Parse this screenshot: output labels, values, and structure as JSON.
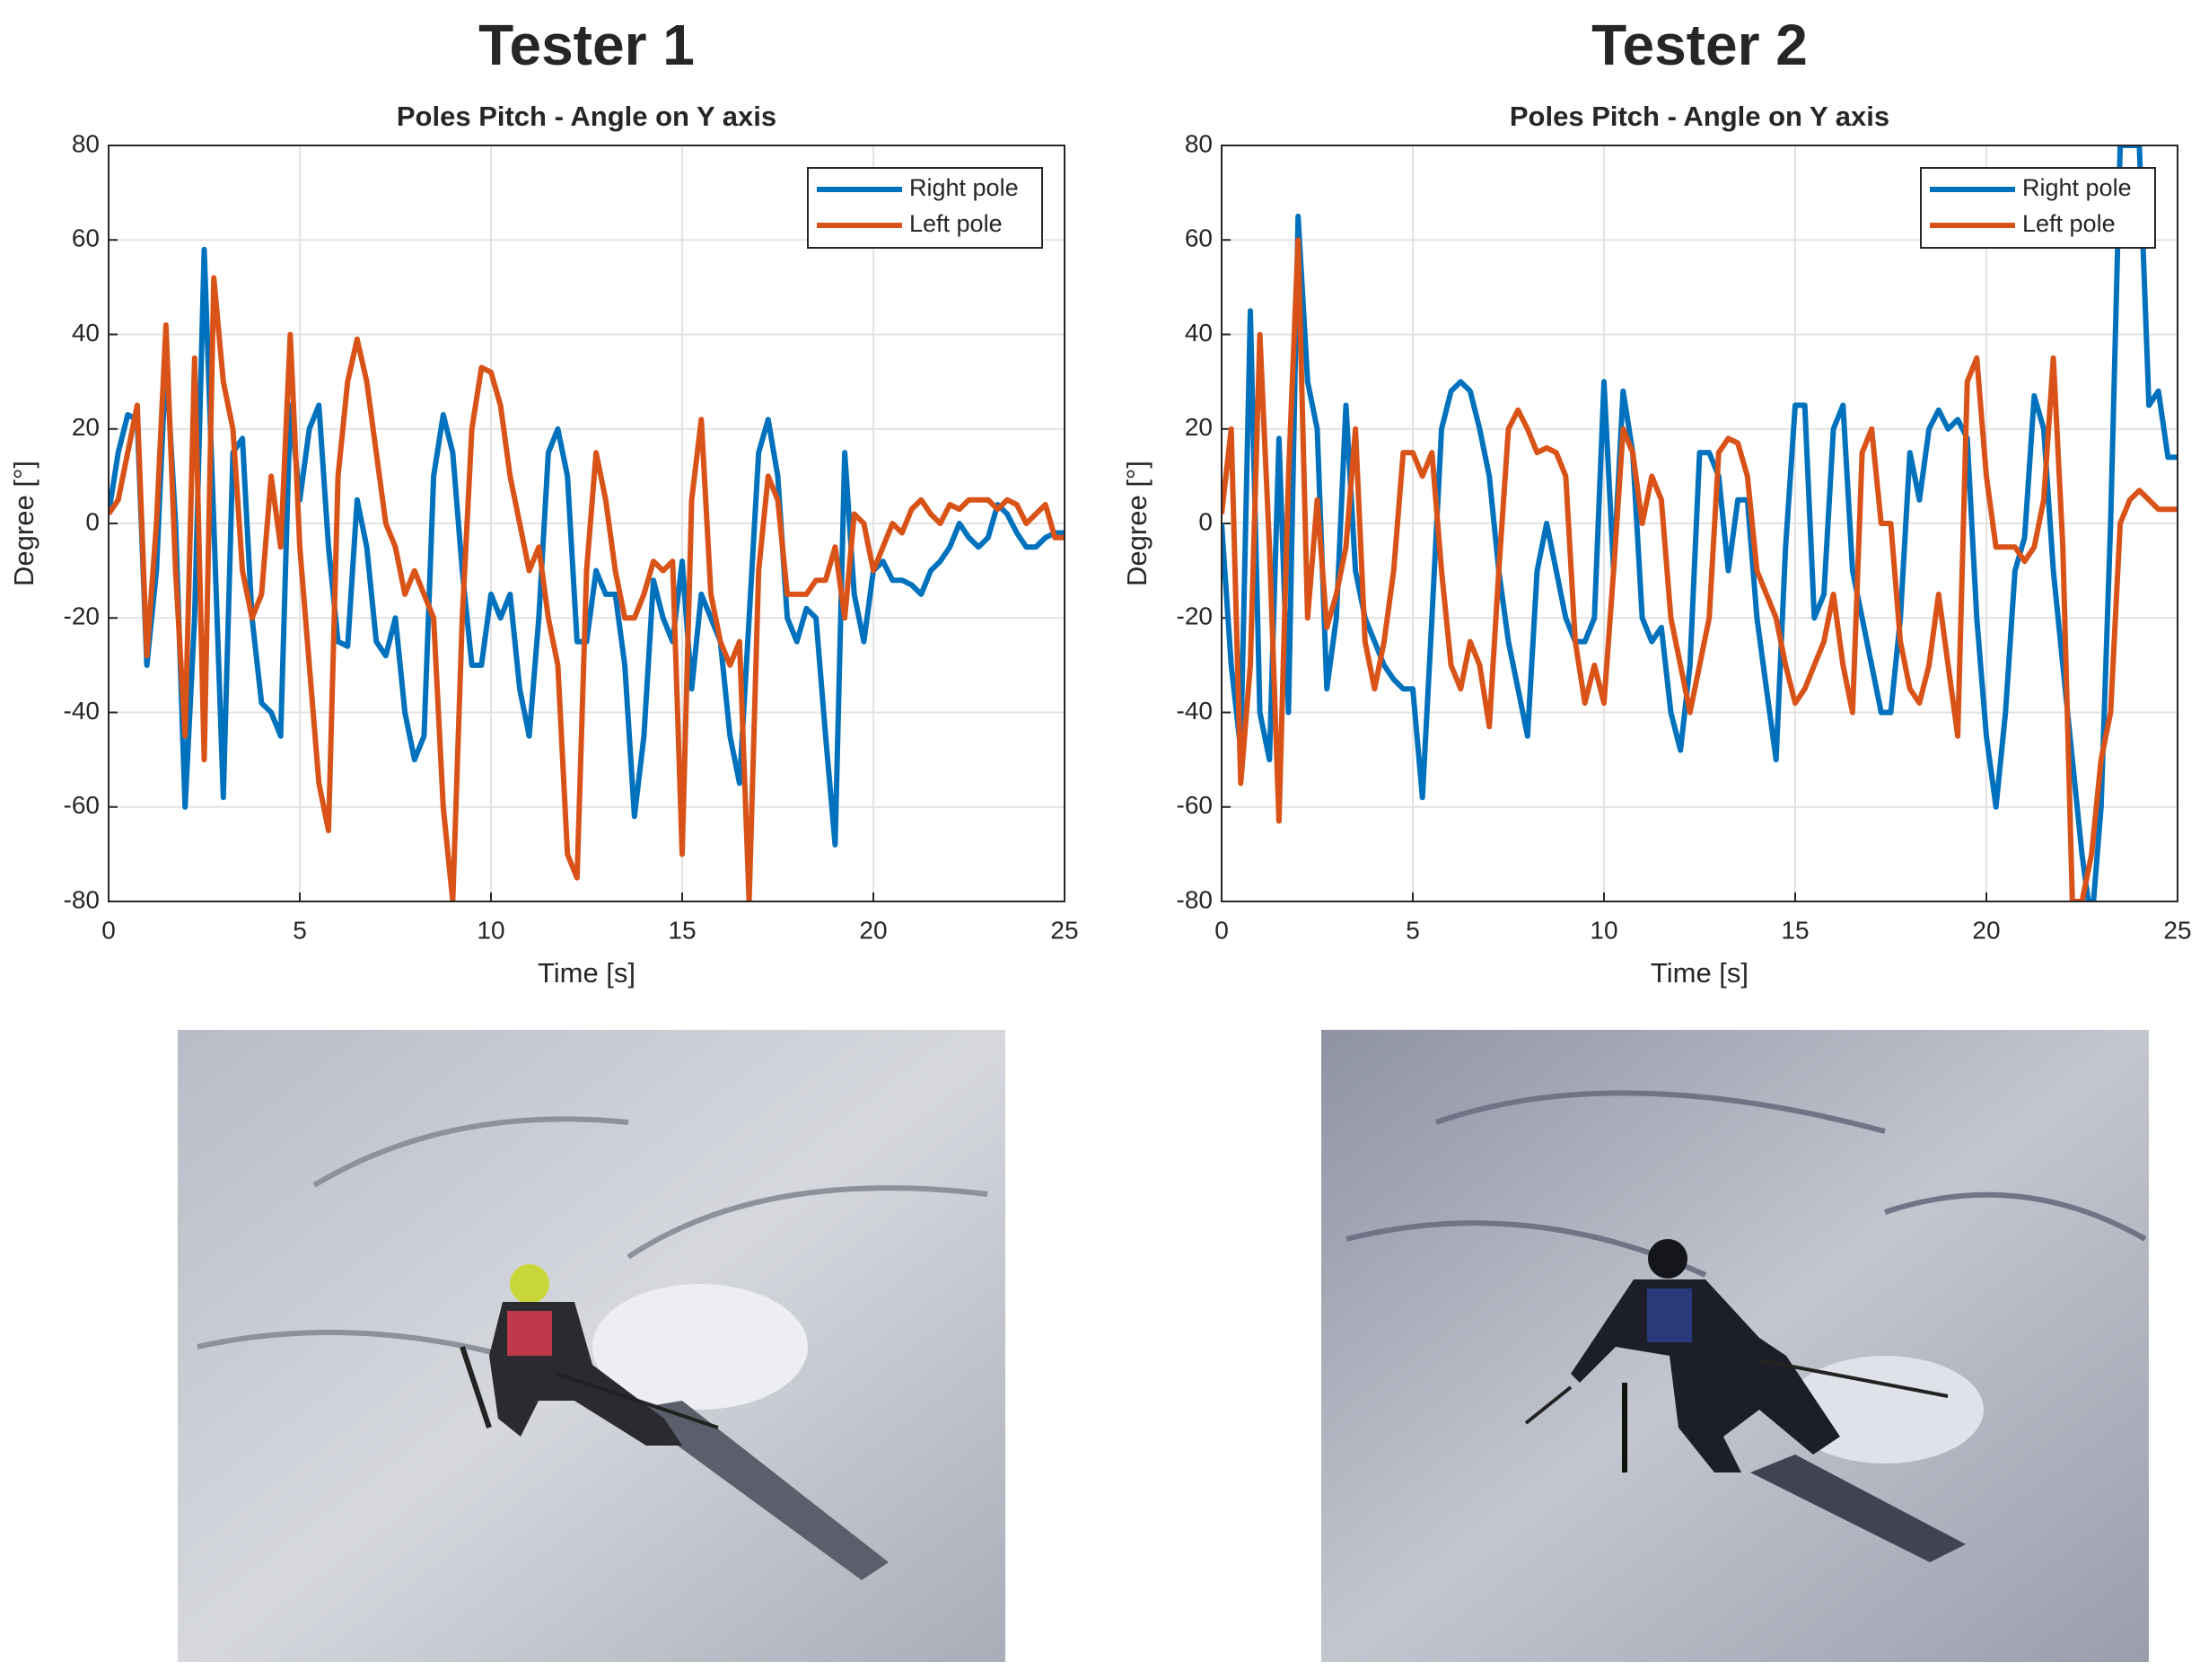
{
  "chart_data": [
    {
      "type": "line",
      "title": "Tester 1",
      "subtitle": "Poles Pitch - Angle on Y axis",
      "xlabel": "Time [s]",
      "ylabel": "Degree [°]",
      "x": [
        0,
        0.25,
        0.5,
        0.75,
        1,
        1.25,
        1.5,
        1.75,
        2,
        2.25,
        2.5,
        2.75,
        3,
        3.25,
        3.5,
        3.75,
        4,
        4.25,
        4.5,
        4.75,
        5,
        5.25,
        5.5,
        5.75,
        6,
        6.25,
        6.5,
        6.75,
        7,
        7.25,
        7.5,
        7.75,
        8,
        8.25,
        8.5,
        8.75,
        9,
        9.25,
        9.5,
        9.75,
        10,
        10.25,
        10.5,
        10.75,
        11,
        11.25,
        11.5,
        11.75,
        12,
        12.25,
        12.5,
        12.75,
        13,
        13.25,
        13.5,
        13.75,
        14,
        14.25,
        14.5,
        14.75,
        15,
        15.25,
        15.5,
        15.75,
        16,
        16.25,
        16.5,
        16.75,
        17,
        17.25,
        17.5,
        17.75,
        18,
        18.25,
        18.5,
        18.75,
        19,
        19.25,
        19.5,
        19.75,
        20,
        20.25,
        20.5,
        20.75,
        21,
        21.25,
        21.5,
        21.75,
        22,
        22.25,
        22.5,
        22.75,
        23,
        23.25,
        23.5,
        23.75,
        24,
        24.25,
        24.5,
        24.75,
        25
      ],
      "series": [
        {
          "name": "Right pole",
          "color": "#0072bd",
          "values": [
            2,
            15,
            23,
            22,
            -30,
            -10,
            35,
            0,
            -60,
            -20,
            58,
            0,
            -58,
            15,
            18,
            -20,
            -38,
            -40,
            -45,
            25,
            5,
            20,
            25,
            -5,
            -25,
            -26,
            5,
            -5,
            -25,
            -28,
            -20,
            -40,
            -50,
            -45,
            10,
            23,
            15,
            -10,
            -30,
            -30,
            -15,
            -20,
            -15,
            -35,
            -45,
            -20,
            15,
            20,
            10,
            -25,
            -25,
            -10,
            -15,
            -15,
            -30,
            -62,
            -45,
            -12,
            -20,
            -25,
            -8,
            -35,
            -15,
            -20,
            -25,
            -45,
            -55,
            -20,
            15,
            22,
            10,
            -20,
            -25,
            -18,
            -20,
            -45,
            -68,
            15,
            -15,
            -25,
            -10,
            -8,
            -12,
            -12,
            -13,
            -15,
            -10,
            -8,
            -5,
            0,
            -3,
            -5,
            -3,
            4,
            2,
            -2,
            -5,
            -5,
            -3,
            -2,
            -2
          ]
        },
        {
          "name": "Left pole",
          "color": "#d95319",
          "values": [
            2,
            5,
            15,
            25,
            -28,
            0,
            42,
            -10,
            -45,
            35,
            -50,
            52,
            30,
            20,
            -10,
            -20,
            -15,
            10,
            -5,
            40,
            -5,
            -30,
            -55,
            -65,
            10,
            30,
            39,
            30,
            15,
            0,
            -5,
            -15,
            -10,
            -15,
            -20,
            -60,
            -80,
            -20,
            20,
            33,
            32,
            25,
            10,
            0,
            -10,
            -5,
            -20,
            -30,
            -70,
            -75,
            -10,
            15,
            5,
            -10,
            -20,
            -20,
            -15,
            -8,
            -10,
            -8,
            -70,
            5,
            22,
            -15,
            -25,
            -30,
            -25,
            -80,
            -10,
            10,
            5,
            -15,
            -15,
            -15,
            -12,
            -12,
            -5,
            -20,
            2,
            0,
            -10,
            -5,
            0,
            -2,
            3,
            5,
            2,
            0,
            4,
            3,
            5,
            5,
            5,
            3,
            5,
            4,
            0,
            2,
            4,
            -3,
            -3
          ]
        }
      ],
      "xlim": [
        0,
        25
      ],
      "xticks": [
        0,
        5,
        10,
        15,
        20,
        25
      ],
      "ylim": [
        -80,
        80
      ],
      "yticks": [
        -80,
        -60,
        -40,
        -20,
        0,
        20,
        40,
        60,
        80
      ],
      "grid": true,
      "legend": "upper right"
    },
    {
      "type": "line",
      "title": "Tester 2",
      "subtitle": "Poles Pitch - Angle on Y axis",
      "xlabel": "Time [s]",
      "ylabel": "Degree [°]",
      "x": [
        0,
        0.25,
        0.5,
        0.75,
        1,
        1.25,
        1.5,
        1.75,
        2,
        2.25,
        2.5,
        2.75,
        3,
        3.25,
        3.5,
        3.75,
        4,
        4.25,
        4.5,
        4.75,
        5,
        5.25,
        5.5,
        5.75,
        6,
        6.25,
        6.5,
        6.75,
        7,
        7.25,
        7.5,
        7.75,
        8,
        8.25,
        8.5,
        8.75,
        9,
        9.25,
        9.5,
        9.75,
        10,
        10.25,
        10.5,
        10.75,
        11,
        11.25,
        11.5,
        11.75,
        12,
        12.25,
        12.5,
        12.75,
        13,
        13.25,
        13.5,
        13.75,
        14,
        14.25,
        14.5,
        14.75,
        15,
        15.25,
        15.5,
        15.75,
        16,
        16.25,
        16.5,
        16.75,
        17,
        17.25,
        17.5,
        17.75,
        18,
        18.25,
        18.5,
        18.75,
        19,
        19.25,
        19.5,
        19.75,
        20,
        20.25,
        20.5,
        20.75,
        21,
        21.25,
        21.5,
        21.75,
        22,
        22.25,
        22.5,
        22.75,
        23,
        23.25,
        23.5,
        23.75,
        24,
        24.25,
        24.5,
        24.75,
        25
      ],
      "series": [
        {
          "name": "Right pole",
          "color": "#0072bd",
          "values": [
            0,
            -30,
            -48,
            45,
            -40,
            -50,
            18,
            -40,
            65,
            30,
            20,
            -35,
            -20,
            25,
            -10,
            -20,
            -25,
            -30,
            -33,
            -35,
            -35,
            -58,
            -20,
            20,
            28,
            30,
            28,
            20,
            10,
            -10,
            -25,
            -35,
            -45,
            -10,
            0,
            -10,
            -20,
            -25,
            -25,
            -20,
            30,
            -10,
            28,
            15,
            -20,
            -25,
            -22,
            -40,
            -48,
            -30,
            15,
            15,
            10,
            -10,
            5,
            5,
            -20,
            -35,
            -50,
            -5,
            25,
            25,
            -20,
            -15,
            20,
            25,
            -10,
            -20,
            -30,
            -40,
            -40,
            -20,
            15,
            5,
            20,
            24,
            20,
            22,
            18,
            -20,
            -45,
            -60,
            -40,
            -10,
            -3,
            27,
            20,
            -10,
            -30,
            -50,
            -70,
            -85,
            -60,
            0,
            80,
            80,
            80,
            25,
            28,
            14,
            14
          ]
        },
        {
          "name": "Left pole",
          "color": "#d95319",
          "values": [
            2,
            20,
            -55,
            -30,
            40,
            -5,
            -63,
            10,
            60,
            -20,
            5,
            -22,
            -15,
            -5,
            20,
            -25,
            -35,
            -25,
            -10,
            15,
            15,
            10,
            15,
            -10,
            -30,
            -35,
            -25,
            -30,
            -43,
            -10,
            20,
            24,
            20,
            15,
            16,
            15,
            10,
            -25,
            -38,
            -30,
            -38,
            -10,
            20,
            15,
            0,
            10,
            5,
            -20,
            -30,
            -40,
            -30,
            -20,
            15,
            18,
            17,
            10,
            -10,
            -15,
            -20,
            -30,
            -38,
            -35,
            -30,
            -25,
            -15,
            -30,
            -40,
            15,
            20,
            0,
            0,
            -25,
            -35,
            -38,
            -30,
            -15,
            -30,
            -45,
            30,
            35,
            10,
            -5,
            -5,
            -5,
            -8,
            -5,
            5,
            35,
            -5,
            -80,
            -80,
            -70,
            -50,
            -40,
            0,
            5,
            7,
            5,
            3,
            3,
            3
          ]
        }
      ],
      "xlim": [
        0,
        25
      ],
      "xticks": [
        0,
        5,
        10,
        15,
        20,
        25
      ],
      "ylim": [
        -80,
        80
      ],
      "yticks": [
        -80,
        -60,
        -40,
        -20,
        0,
        20,
        40,
        60,
        80
      ],
      "grid": true,
      "legend": "upper right"
    }
  ]
}
